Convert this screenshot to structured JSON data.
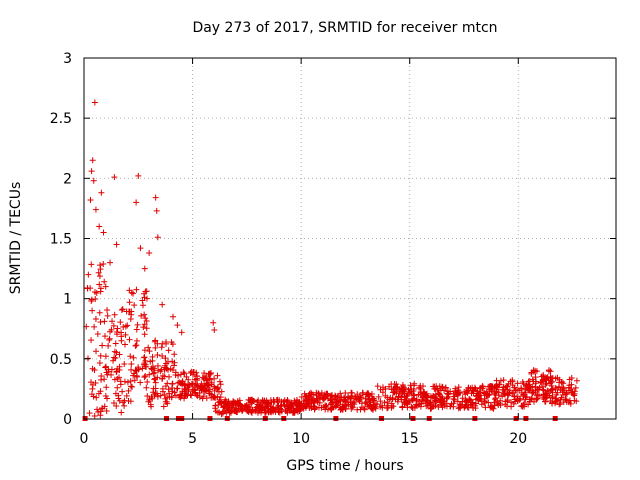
{
  "chart_data": {
    "type": "scatter",
    "title": "Day 273 of 2017, SRMTID for receiver mtcn",
    "xlabel": "GPS time / hours",
    "ylabel": "SRMTID / TECUs",
    "xlim": [
      0,
      24.5
    ],
    "ylim": [
      0,
      3
    ],
    "x_ticks": [
      0,
      5,
      10,
      15,
      20
    ],
    "x_tick_labels": [
      "0",
      "5",
      "10",
      "15",
      "20"
    ],
    "y_ticks": [
      0,
      0.5,
      1,
      1.5,
      2,
      2.5,
      3
    ],
    "y_tick_labels": [
      "0",
      "0.5",
      "1",
      "1.5",
      "2",
      "2.5",
      "3"
    ],
    "grid": true,
    "marker": "plus",
    "color": "#e00000",
    "series": [
      {
        "name": "SRMTID",
        "outliers": [
          [
            0.5,
            2.63
          ],
          [
            0.4,
            2.15
          ],
          [
            0.35,
            2.06
          ],
          [
            0.45,
            1.98
          ],
          [
            0.3,
            1.82
          ],
          [
            0.55,
            1.74
          ],
          [
            0.8,
            1.88
          ],
          [
            1.4,
            2.01
          ],
          [
            2.5,
            2.02
          ],
          [
            2.4,
            1.8
          ],
          [
            3.3,
            1.84
          ],
          [
            3.35,
            1.73
          ],
          [
            3.4,
            1.51
          ],
          [
            0.7,
            1.6
          ],
          [
            0.9,
            1.55
          ],
          [
            1.5,
            1.45
          ],
          [
            2.6,
            1.42
          ],
          [
            3.0,
            1.38
          ],
          [
            1.2,
            1.3
          ],
          [
            2.8,
            1.25
          ],
          [
            5.95,
            0.8
          ],
          [
            6.0,
            0.74
          ],
          [
            4.1,
            0.85
          ],
          [
            4.3,
            0.78
          ],
          [
            0.2,
            1.2
          ],
          [
            1.0,
            1.1
          ],
          [
            2.2,
            1.05
          ],
          [
            2.9,
            1.0
          ],
          [
            3.6,
            0.95
          ],
          [
            4.5,
            0.72
          ]
        ],
        "generator_note": "dense cloud of points: high variance 0-4 h, decaying to ~0.1-0.2 TECU baseline after 6 h with bumps near 14 h, 21 h and 22.5 h"
      }
    ],
    "zero_markers_x": [
      0.05,
      4.5,
      4.35,
      3.8,
      5.8,
      6.6,
      8.35,
      9.2,
      11.6,
      13.7,
      15.15,
      15.9,
      18.0,
      19.9,
      20.35,
      21.7
    ]
  }
}
